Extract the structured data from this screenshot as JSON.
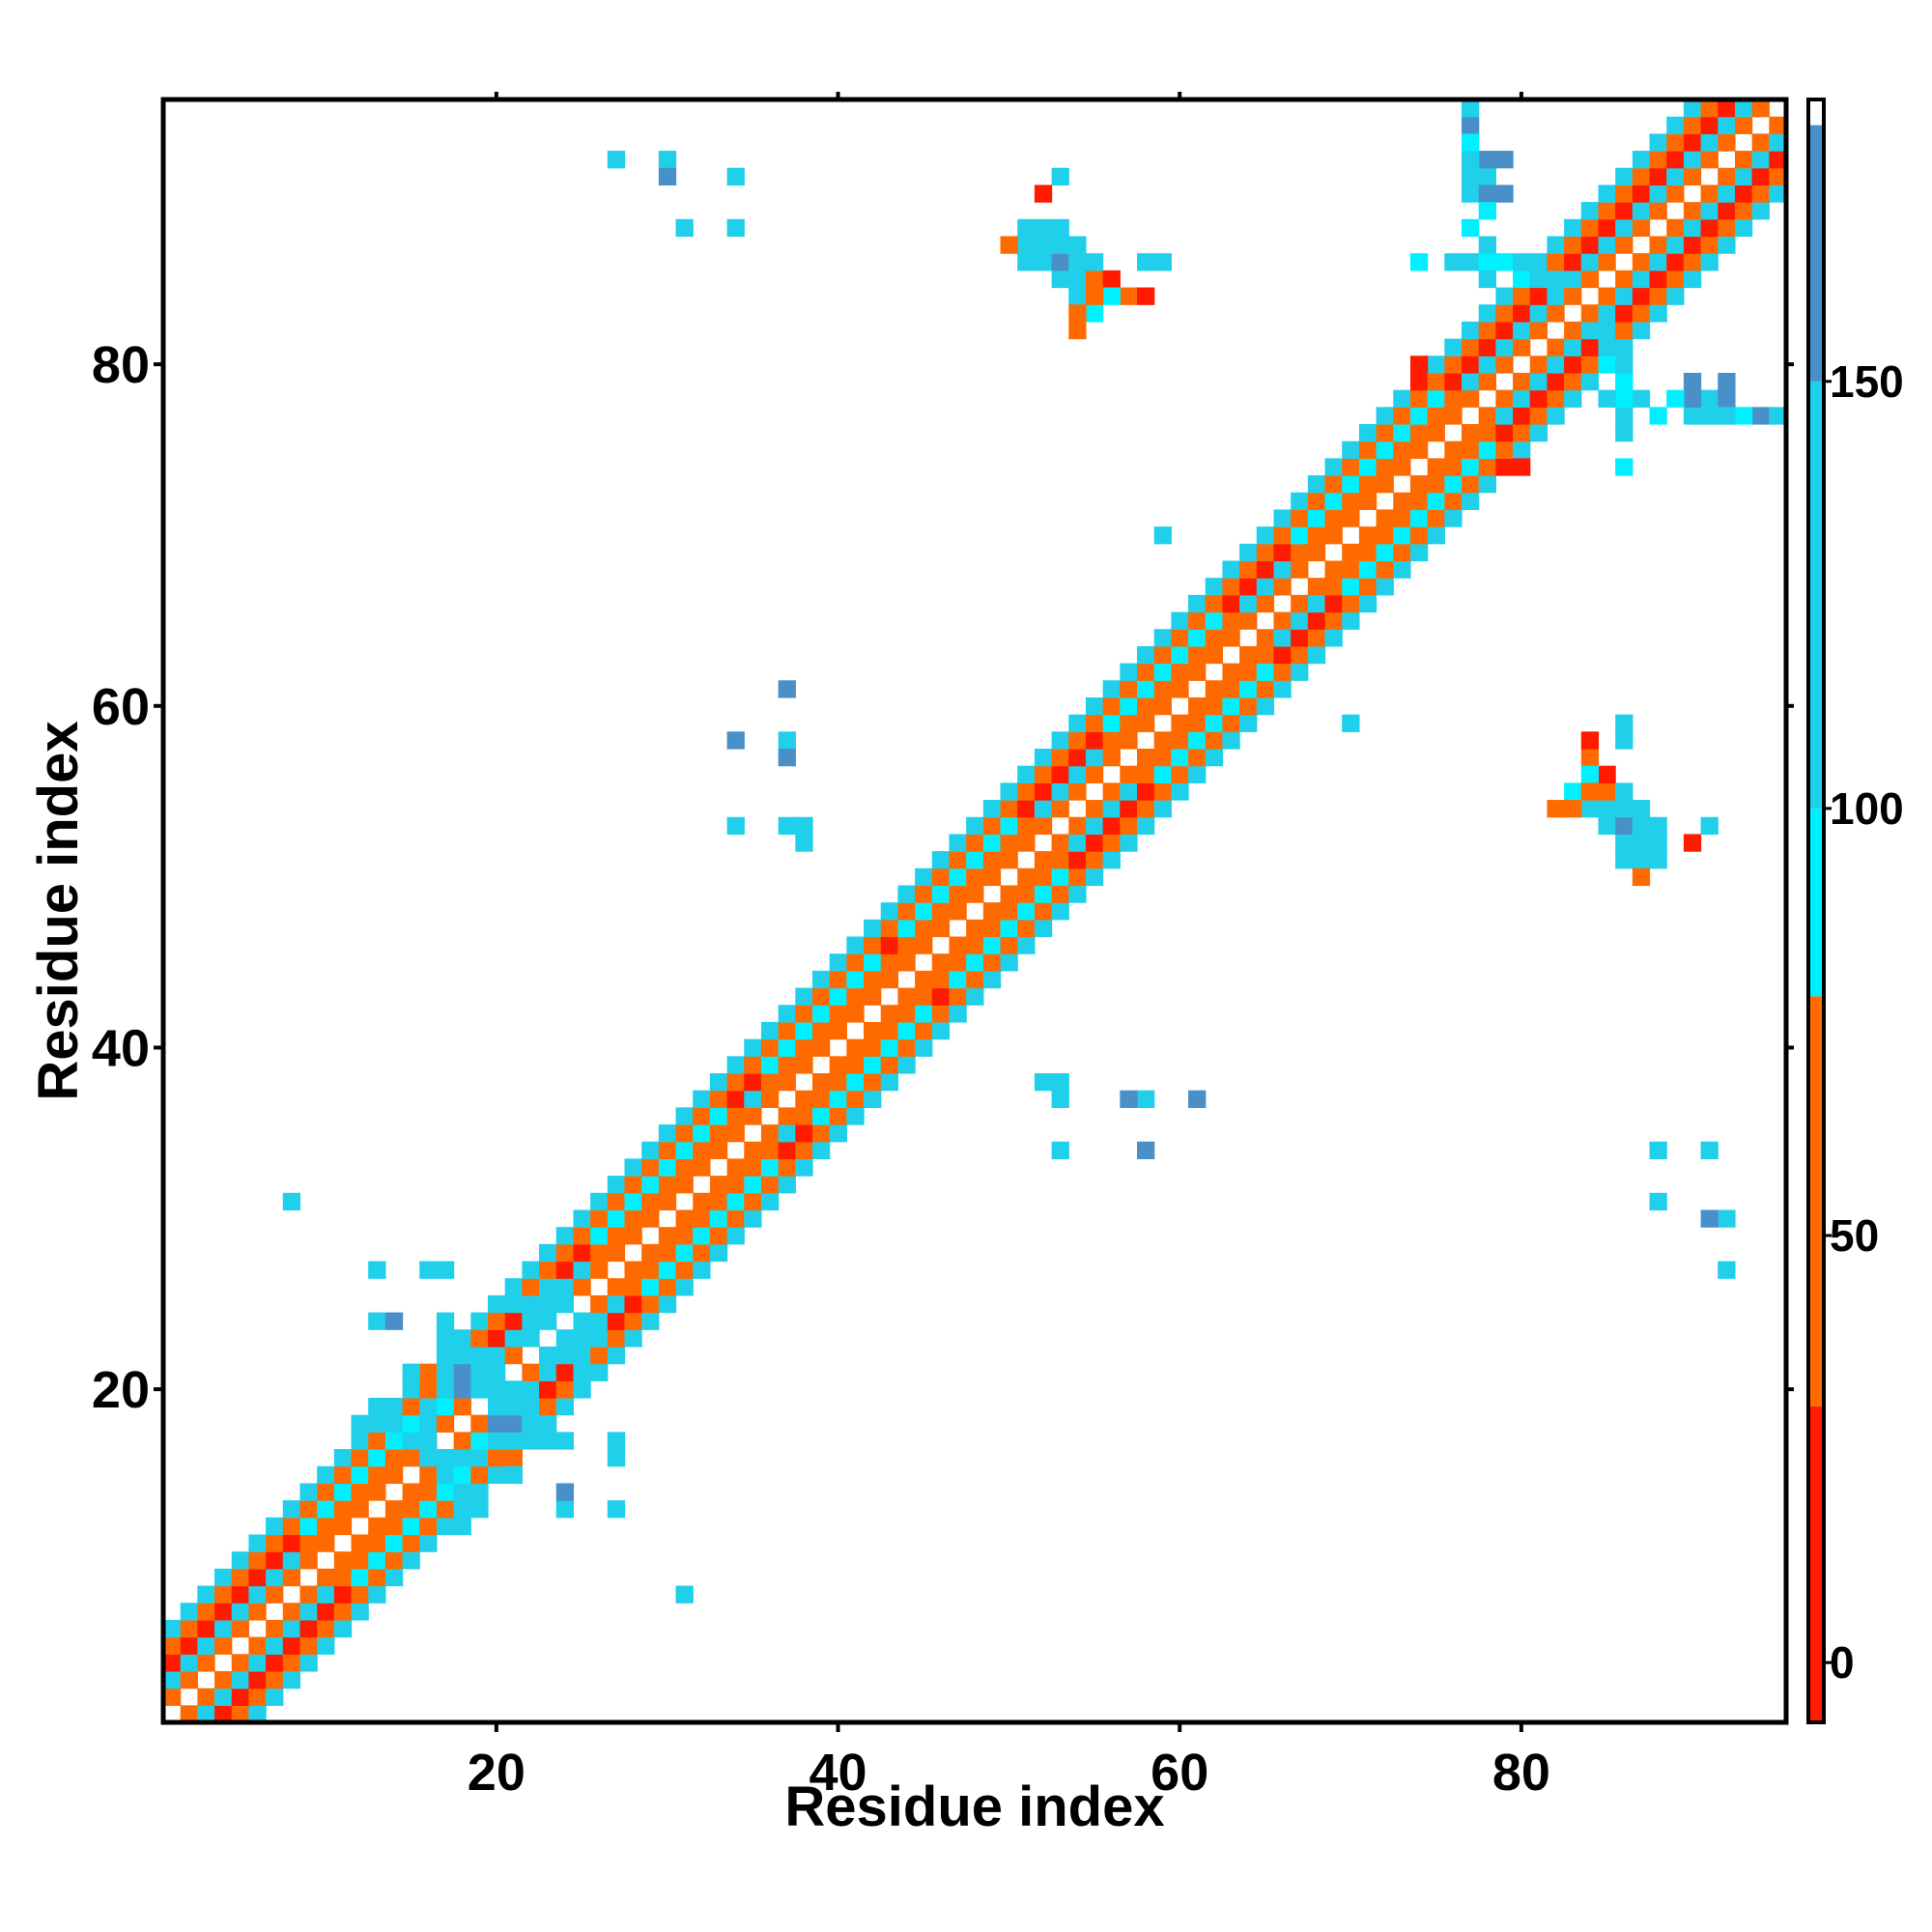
{
  "chart_data": {
    "type": "heatmap",
    "xlabel": "Residue index",
    "ylabel": "Residue index",
    "x_ticks": [
      20,
      40,
      60,
      80
    ],
    "y_ticks": [
      20,
      40,
      60,
      80
    ],
    "colorbar_ticks": [
      0,
      50,
      100,
      150
    ],
    "xlim": [
      1,
      95
    ],
    "ylim": [
      1,
      95
    ],
    "color_range": [
      -7,
      183
    ],
    "grid": false,
    "legend": "colorbar-right",
    "colorscale": [
      {
        "from": -7,
        "to": 30,
        "color": "#ff1a00"
      },
      {
        "from": 30,
        "to": 78,
        "color": "#ff6a00"
      },
      {
        "from": 78,
        "to": 100,
        "color": "#00f0ff"
      },
      {
        "from": 100,
        "to": 150,
        "color": "#20d0ea"
      },
      {
        "from": 150,
        "to": 180,
        "color": "#4a90c8"
      },
      {
        "from": 180,
        "to": 183,
        "color": "#ffffff"
      }
    ],
    "band": [
      {
        "offset": 0,
        "value": 183
      },
      {
        "offset": 1,
        "value": 40
      },
      {
        "offset": 2,
        "value": 115
      },
      {
        "offset": 3,
        "value": 10
      },
      {
        "offset": 4,
        "value": 45
      },
      {
        "offset": 5,
        "value": 125
      }
    ],
    "helices": [
      {
        "start": 44,
        "end": 51
      },
      {
        "start": 36,
        "end": 43
      },
      {
        "start": 26,
        "end": 34
      },
      {
        "start": 56,
        "end": 63
      },
      {
        "start": 67,
        "end": 76
      },
      {
        "start": 9,
        "end": 16
      }
    ],
    "helix_band": [
      {
        "offset": 1,
        "value": 40
      },
      {
        "offset": 2,
        "value": 65
      },
      {
        "offset": 3,
        "value": 90
      },
      {
        "offset": 4,
        "value": 55
      },
      {
        "offset": 5,
        "value": 120
      }
    ],
    "cells": [
      [
        53,
        85,
        100
      ],
      [
        54,
        85,
        165
      ],
      [
        55,
        85,
        110
      ],
      [
        56,
        85,
        120
      ],
      [
        52,
        86,
        110
      ],
      [
        53,
        86,
        160
      ],
      [
        54,
        86,
        170
      ],
      [
        55,
        86,
        105
      ],
      [
        52,
        87,
        95
      ],
      [
        53,
        87,
        115
      ],
      [
        51,
        87,
        60
      ],
      [
        57,
        84,
        60
      ],
      [
        58,
        84,
        20
      ],
      [
        54,
        84,
        110
      ],
      [
        55,
        83,
        95
      ],
      [
        56,
        84,
        100
      ],
      [
        54,
        82,
        65
      ],
      [
        59,
        86,
        110
      ],
      [
        52,
        90,
        10
      ],
      [
        53,
        91,
        110
      ],
      [
        27,
        92,
        110
      ],
      [
        30,
        92,
        105
      ],
      [
        30,
        91,
        165
      ],
      [
        34,
        91,
        110
      ],
      [
        31,
        88,
        110
      ],
      [
        34,
        88,
        110
      ],
      [
        77,
        94,
        110
      ],
      [
        77,
        93,
        165
      ],
      [
        77,
        91,
        110
      ],
      [
        78,
        91,
        110
      ],
      [
        77,
        90,
        110
      ],
      [
        78,
        90,
        165
      ],
      [
        79,
        90,
        165
      ],
      [
        74,
        86,
        110
      ],
      [
        76,
        86,
        95
      ],
      [
        77,
        86,
        95
      ],
      [
        78,
        86,
        95
      ],
      [
        79,
        86,
        95
      ],
      [
        80,
        86,
        110
      ],
      [
        78,
        85,
        105
      ],
      [
        81,
        85,
        110
      ],
      [
        82,
        85,
        110
      ],
      [
        83,
        85,
        100
      ],
      [
        84,
        86,
        110
      ],
      [
        85,
        83,
        110
      ],
      [
        84,
        82,
        110
      ],
      [
        86,
        81,
        120
      ],
      [
        85,
        80,
        100
      ],
      [
        86,
        79,
        95
      ],
      [
        87,
        78,
        110
      ],
      [
        88,
        77,
        95
      ],
      [
        86,
        77,
        110
      ],
      [
        89,
        78,
        95
      ],
      [
        86,
        76,
        110
      ],
      [
        86,
        74,
        100
      ],
      [
        92,
        79,
        160
      ],
      [
        92,
        78,
        165
      ],
      [
        93,
        77,
        100
      ],
      [
        92,
        77,
        110
      ],
      [
        94,
        77,
        165
      ],
      [
        95,
        77,
        110
      ],
      [
        79,
        74,
        10
      ],
      [
        80,
        74,
        10
      ],
      [
        59,
        70,
        110
      ],
      [
        70,
        59,
        110
      ],
      [
        37,
        61,
        165
      ],
      [
        34,
        58,
        165
      ],
      [
        37,
        58,
        110
      ],
      [
        37,
        57,
        165
      ],
      [
        34,
        53,
        110
      ],
      [
        37,
        53,
        95
      ],
      [
        38,
        53,
        110
      ],
      [
        38,
        52,
        110
      ],
      [
        86,
        58,
        110
      ],
      [
        85,
        56,
        10
      ],
      [
        84,
        55,
        60
      ],
      [
        85,
        55,
        60
      ],
      [
        83,
        54,
        60
      ],
      [
        86,
        55,
        110
      ],
      [
        84,
        54,
        110
      ],
      [
        85,
        54,
        110
      ],
      [
        86,
        54,
        110
      ],
      [
        87,
        54,
        110
      ],
      [
        85,
        53,
        110
      ],
      [
        86,
        53,
        165
      ],
      [
        87,
        53,
        110
      ],
      [
        88,
        53,
        110
      ],
      [
        86,
        52,
        110
      ],
      [
        87,
        52,
        110
      ],
      [
        88,
        52,
        110
      ],
      [
        86,
        51,
        110
      ],
      [
        87,
        51,
        105
      ],
      [
        88,
        51,
        110
      ],
      [
        87,
        50,
        60
      ],
      [
        91,
        53,
        110
      ],
      [
        90,
        52,
        10
      ],
      [
        52,
        38,
        110
      ],
      [
        53,
        38,
        110
      ],
      [
        53,
        37,
        110
      ],
      [
        57,
        37,
        160
      ],
      [
        58,
        37,
        110
      ],
      [
        61,
        37,
        165
      ],
      [
        53,
        34,
        110
      ],
      [
        58,
        34,
        165
      ],
      [
        88,
        34,
        110
      ],
      [
        91,
        34,
        110
      ],
      [
        88,
        31,
        110
      ],
      [
        91,
        30,
        165
      ],
      [
        92,
        30,
        110
      ],
      [
        92,
        27,
        110
      ],
      [
        8,
        31,
        110
      ],
      [
        13,
        27,
        110
      ],
      [
        16,
        27,
        110
      ],
      [
        17,
        27,
        110
      ],
      [
        13,
        24,
        110
      ],
      [
        14,
        24,
        165
      ],
      [
        17,
        24,
        110
      ],
      [
        17,
        23,
        110
      ],
      [
        17,
        22,
        110
      ],
      [
        18,
        22,
        165
      ],
      [
        19,
        22,
        110
      ],
      [
        17,
        21,
        165
      ],
      [
        18,
        21,
        110
      ],
      [
        19,
        20,
        110
      ],
      [
        20,
        20,
        110
      ],
      [
        21,
        20,
        110
      ],
      [
        20,
        19,
        110
      ],
      [
        21,
        19,
        110
      ],
      [
        20,
        18,
        165
      ],
      [
        21,
        18,
        165
      ],
      [
        22,
        18,
        110
      ],
      [
        19,
        17,
        100
      ],
      [
        20,
        17,
        110
      ],
      [
        21,
        17,
        110
      ],
      [
        22,
        17,
        110
      ],
      [
        23,
        17,
        110
      ],
      [
        24,
        17,
        110
      ],
      [
        27,
        17,
        110
      ],
      [
        27,
        16,
        110
      ],
      [
        24,
        14,
        165
      ],
      [
        24,
        13,
        110
      ],
      [
        27,
        13,
        110
      ],
      [
        31,
        8,
        110
      ],
      [
        16,
        16,
        110
      ],
      [
        17,
        16,
        110
      ],
      [
        18,
        16,
        110
      ],
      [
        16,
        18,
        110
      ],
      [
        16,
        19,
        110
      ],
      [
        16,
        20,
        60
      ],
      [
        15,
        21,
        110
      ],
      [
        16,
        21,
        60
      ],
      [
        15,
        17,
        110
      ],
      [
        14,
        18,
        110
      ],
      [
        14,
        19,
        110
      ],
      [
        12,
        18,
        110
      ],
      [
        13,
        19,
        110
      ],
      [
        22,
        23,
        110
      ],
      [
        23,
        22,
        110
      ],
      [
        24,
        23,
        110
      ],
      [
        23,
        24,
        110
      ],
      [
        24,
        25,
        110
      ],
      [
        25,
        24,
        110
      ],
      [
        26,
        23,
        110
      ],
      [
        23,
        26,
        110
      ],
      [
        21,
        25,
        110
      ],
      [
        22,
        25,
        110
      ],
      [
        25,
        22,
        110
      ],
      [
        25,
        21,
        110
      ]
    ]
  }
}
